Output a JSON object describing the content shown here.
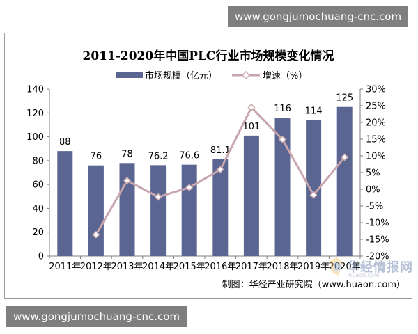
{
  "watermark": {
    "top": "www.gongjumochuang-cnc.com",
    "bottom": "www.gongjumochuang-cnc.com"
  },
  "brand": {
    "name": "华经情报网",
    "url": "huaon.com"
  },
  "source_note": "制图：华经产业研究院（www.huaon.com）",
  "colors": {
    "bar": "#5a6691",
    "line": "#c9a6ad",
    "marker_fill": "#ffffff",
    "marker_stroke": "#c9a6ad",
    "axis": "#7f7f7f",
    "text": "#000000"
  },
  "chart_data": {
    "type": "bar",
    "title": "2011-2020年中国PLC行业市场规模变化情况",
    "categories": [
      "2011年",
      "2012年",
      "2013年",
      "2014年",
      "2015年",
      "2016年",
      "2017年",
      "2018年",
      "2019年",
      "2020年"
    ],
    "series": [
      {
        "name": "市场规模（亿元）",
        "type": "bar",
        "axis": "left",
        "values": [
          88,
          76,
          78,
          76.2,
          76.6,
          81.1,
          101,
          116,
          114,
          125
        ],
        "labels": [
          "88",
          "76",
          "78",
          "76.2",
          "76.6",
          "81.1",
          "101",
          "116",
          "114",
          "125"
        ]
      },
      {
        "name": "增速（%）",
        "type": "line",
        "axis": "right",
        "values": [
          null,
          -13.6,
          2.6,
          -2.3,
          0.5,
          5.9,
          24.5,
          14.9,
          -1.7,
          9.6
        ]
      }
    ],
    "yleft": {
      "range": [
        0,
        140
      ],
      "ticks": [
        0,
        20,
        40,
        60,
        80,
        100,
        120,
        140
      ],
      "tick_labels": [
        "0",
        "20",
        "40",
        "60",
        "80",
        "100",
        "120",
        "140"
      ]
    },
    "yright": {
      "range": [
        -20,
        30
      ],
      "ticks": [
        -20,
        -15,
        -10,
        -5,
        0,
        5,
        10,
        15,
        20,
        25,
        30
      ],
      "tick_labels": [
        "-20%",
        "-15%",
        "-10%",
        "-5%",
        "0%",
        "5%",
        "10%",
        "15%",
        "20%",
        "25%",
        "30%"
      ]
    },
    "legend_position": "top-center",
    "grid": false
  }
}
